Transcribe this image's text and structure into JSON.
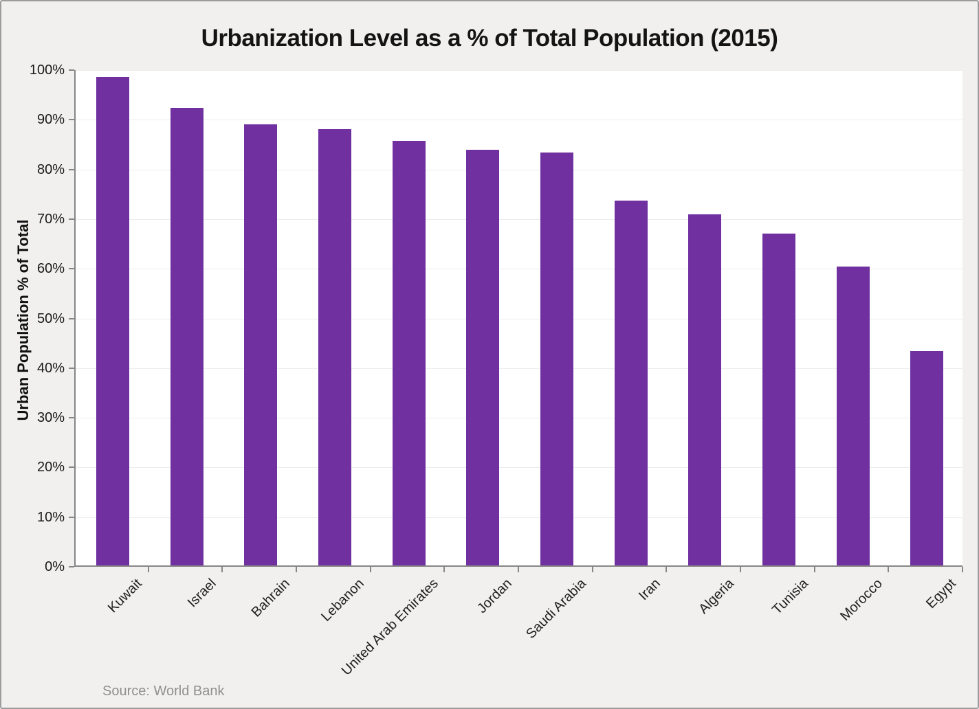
{
  "title": "Urbanization Level as a % of Total Population (2015)",
  "source_note": "Source: World Bank",
  "colors": {
    "bar": "#7030A0",
    "canvas_background": "#F1F0EF",
    "plot_background": "#FFFFFF",
    "axis": "#868686",
    "gridline": "#EDEDED",
    "title_text": "#141414",
    "source_text": "#8F8F8F"
  },
  "chart_data": {
    "type": "bar",
    "title": "Urbanization Level as a % of Total Population (2015)",
    "xlabel": "",
    "ylabel": "Urban Population % of Total",
    "ylim": [
      0,
      100
    ],
    "ytick_step": 10,
    "ytick_labels": [
      "0%",
      "10%",
      "20%",
      "30%",
      "40%",
      "50%",
      "60%",
      "70%",
      "80%",
      "90%",
      "100%"
    ],
    "grid": true,
    "legend_position": "none",
    "categories": [
      "Kuwait",
      "Israel",
      "Bahrain",
      "Lebanon",
      "United Arab Emirates",
      "Jordan",
      "Saudi Arabia",
      "Iran",
      "Algeria",
      "Tunisia",
      "Morocco",
      "Egypt"
    ],
    "values": [
      98.3,
      92.1,
      88.8,
      87.8,
      85.5,
      83.7,
      83.1,
      73.4,
      70.7,
      66.8,
      60.2,
      43.1
    ],
    "bar_color": "#7030A0",
    "source": "Source: World Bank"
  }
}
